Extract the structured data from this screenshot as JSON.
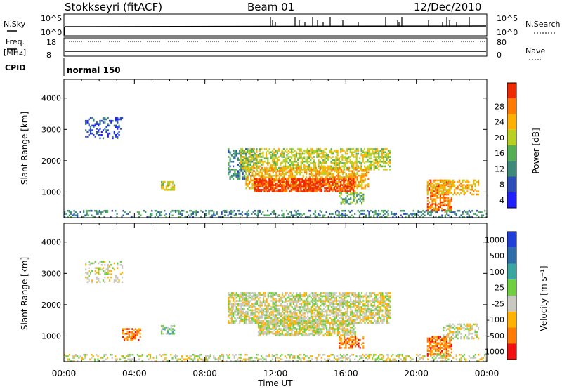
{
  "header": {
    "station": "Stokkseyri (fitACF)",
    "beam": "Beam 01",
    "date": "12/Dec/2010"
  },
  "labels": {
    "nsky": "N.Sky",
    "nsearch": "N.Search",
    "freq_1": "Freq.",
    "freq_2": "[MHz]",
    "nave": "Nave",
    "cpid": "CPID",
    "cpid_value": "normal 150",
    "time_label": "Time UT",
    "ylabel": "Slant Range [km]",
    "power_cbar_label": "Power [dB]",
    "velocity_cbar_label": "Velocity [m s⁻¹]"
  },
  "noise_panel": {
    "left_ticks": [
      "10^5",
      "10^0"
    ],
    "right_ticks": [
      "10^5",
      "10^0"
    ]
  },
  "freq_panel": {
    "left_ticks": [
      "18",
      "8"
    ],
    "right_ticks": [
      "80",
      "0"
    ]
  },
  "chart_data": [
    {
      "type": "heatmap",
      "name": "Power",
      "ylabel": "Slant Range [km]",
      "xlabel": "Time UT",
      "xlim": [
        "00:00",
        "24:00"
      ],
      "ylim": [
        180,
        4600
      ],
      "x_ticks": [
        "00:00",
        "04:00",
        "08:00",
        "12:00",
        "16:00",
        "20:00",
        "00:00"
      ],
      "y_ticks": [
        "1000",
        "2000",
        "3000",
        "4000"
      ],
      "colorbar": {
        "label": "Power [dB]",
        "ticks": [
          "4",
          "8",
          "12",
          "16",
          "20",
          "24",
          "28"
        ],
        "colors": [
          "#1f1fff",
          "#2d4db8",
          "#3d8a7a",
          "#55b055",
          "#b8d022",
          "#ffb000",
          "#ff7a00",
          "#ee2a00"
        ]
      },
      "regions": [
        {
          "t0": 1.2,
          "t1": 3.3,
          "r0": 2700,
          "r1": 3400,
          "level": 1,
          "density": 0.35
        },
        {
          "t0": 5.5,
          "t1": 6.3,
          "r0": 1050,
          "r1": 1350,
          "level": 4,
          "density": 0.5
        },
        {
          "t0": 9.3,
          "t1": 10.8,
          "r0": 1400,
          "r1": 2400,
          "level": 2,
          "density": 0.5
        },
        {
          "t0": 10.0,
          "t1": 18.5,
          "r0": 1700,
          "r1": 2400,
          "level": 4,
          "density": 0.6
        },
        {
          "t0": 10.3,
          "t1": 17.3,
          "r0": 1100,
          "r1": 1800,
          "level": 5,
          "density": 0.6
        },
        {
          "t0": 10.8,
          "t1": 16.5,
          "r0": 1000,
          "r1": 1450,
          "level": 7,
          "density": 0.75
        },
        {
          "t0": 15.6,
          "t1": 17.0,
          "r0": 600,
          "r1": 1000,
          "level": 3,
          "density": 0.4
        },
        {
          "t0": 20.6,
          "t1": 22.0,
          "r0": 350,
          "r1": 1400,
          "level": 6,
          "density": 0.6
        },
        {
          "t0": 20.6,
          "t1": 23.5,
          "r0": 900,
          "r1": 1400,
          "level": 5,
          "density": 0.45
        },
        {
          "t0": 0.0,
          "t1": 24.0,
          "r0": 180,
          "r1": 420,
          "level": 2,
          "density": 0.35
        }
      ]
    },
    {
      "type": "heatmap",
      "name": "Velocity",
      "ylabel": "Slant Range [km]",
      "xlabel": "Time UT",
      "xlim": [
        "00:00",
        "24:00"
      ],
      "ylim": [
        180,
        4600
      ],
      "x_ticks": [
        "00:00",
        "04:00",
        "08:00",
        "12:00",
        "16:00",
        "20:00",
        "00:00"
      ],
      "y_ticks": [
        "1000",
        "2000",
        "3000",
        "4000"
      ],
      "colorbar": {
        "label": "Velocity [m s⁻¹]",
        "ticks": [
          "1000",
          "500",
          "100",
          "25",
          "-25",
          "-100",
          "-500",
          "-1000"
        ],
        "colors": [
          "#1f3fd8",
          "#2e6ea8",
          "#3aa8a0",
          "#6fcf3f",
          "#c8c8c0",
          "#ffb300",
          "#ff7a00",
          "#f01010"
        ]
      },
      "regions": [
        {
          "t0": 1.2,
          "t1": 3.3,
          "r0": 2700,
          "r1": 3400,
          "level": 4,
          "density": 0.3
        },
        {
          "t0": 3.3,
          "t1": 4.3,
          "r0": 850,
          "r1": 1250,
          "level": 6,
          "density": 0.6
        },
        {
          "t0": 5.5,
          "t1": 6.3,
          "r0": 1050,
          "r1": 1350,
          "level": 3,
          "density": 0.5
        },
        {
          "t0": 9.3,
          "t1": 18.5,
          "r0": 1400,
          "r1": 2400,
          "level": 4,
          "density": 0.7
        },
        {
          "t0": 11.0,
          "t1": 16.5,
          "r0": 1000,
          "r1": 1500,
          "level": 4,
          "density": 0.75
        },
        {
          "t0": 15.6,
          "t1": 17.0,
          "r0": 600,
          "r1": 1000,
          "level": 6,
          "density": 0.55
        },
        {
          "t0": 20.6,
          "t1": 22.0,
          "r0": 350,
          "r1": 1000,
          "level": 6,
          "density": 0.65
        },
        {
          "t0": 21.5,
          "t1": 23.5,
          "r0": 900,
          "r1": 1400,
          "level": 4,
          "density": 0.5
        },
        {
          "t0": 0.0,
          "t1": 24.0,
          "r0": 180,
          "r1": 420,
          "level": 4,
          "density": 0.35
        }
      ]
    }
  ]
}
